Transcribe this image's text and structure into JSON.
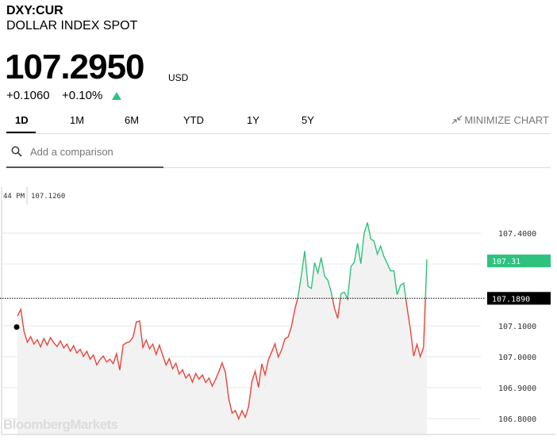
{
  "header": {
    "ticker": "DXY:CUR",
    "name": "DOLLAR INDEX SPOT",
    "price": "107.2950",
    "currency": "USD",
    "change": "+0.1060",
    "change_pct": "+0.10%",
    "direction_icon": "triangle-up-icon",
    "up_color": "#2ec27e"
  },
  "tabs": [
    {
      "label": "1D",
      "active": true
    },
    {
      "label": "1M",
      "active": false
    },
    {
      "label": "6M",
      "active": false
    },
    {
      "label": "YTD",
      "active": false
    },
    {
      "label": "1Y",
      "active": false
    },
    {
      "label": "5Y",
      "active": false
    }
  ],
  "minimize_label": "MINIMIZE CHART",
  "search": {
    "placeholder": "Add a comparison"
  },
  "watermark": "BloombergMarkets",
  "chart_data": {
    "type": "line",
    "x_axis_label": "44 PM",
    "hover_value": "107.1260",
    "y_ticks": [
      106.8,
      106.9,
      107.0,
      107.1,
      107.4
    ],
    "y_tick_labels": [
      "106.8000",
      "106.9000",
      "107.0000",
      "107.1000",
      "107.4000"
    ],
    "ylim": [
      106.76,
      107.48
    ],
    "reference_value": 107.189,
    "reference_label": "107.1890",
    "last_value": 107.31,
    "last_label": "107.31",
    "colors": {
      "above": "#2ec27e",
      "below": "#e8453c",
      "last_badge": "#2ec27e",
      "reference_badge": "#000000"
    },
    "series": [
      {
        "values": [
          107.132,
          107.153,
          107.082,
          107.047,
          107.065,
          107.041,
          107.055,
          107.032,
          107.059,
          107.038,
          107.062,
          107.045,
          107.033,
          107.051,
          107.029,
          107.041,
          107.018,
          107.036,
          107.012,
          107.024,
          107.001,
          107.018,
          106.992,
          107.006,
          106.974,
          106.991,
          107.002,
          106.983,
          106.992,
          106.978,
          107.01,
          106.957,
          107.038,
          107.045,
          107.049,
          107.063,
          107.112,
          107.116,
          107.03,
          107.054,
          107.026,
          107.041,
          107.008,
          107.038,
          107.004,
          106.973,
          106.994,
          106.961,
          106.979,
          106.944,
          106.958,
          106.931,
          106.944,
          106.918,
          106.946,
          106.928,
          106.941,
          106.917,
          106.931,
          106.905,
          106.927,
          106.952,
          106.98,
          106.948,
          106.864,
          106.818,
          106.826,
          106.799,
          106.826,
          106.804,
          106.839,
          106.92,
          106.953,
          106.901,
          106.977,
          106.942,
          106.991,
          107.016,
          107.042,
          106.999,
          107.022,
          107.058,
          107.064,
          107.099,
          107.152,
          107.195,
          107.265,
          107.342,
          107.228,
          107.221,
          107.304,
          107.271,
          107.321,
          107.261,
          107.248,
          107.21,
          107.158,
          107.124,
          107.204,
          107.209,
          107.187,
          107.292,
          107.305,
          107.367,
          107.301,
          107.399,
          107.434,
          107.381,
          107.374,
          107.332,
          107.358,
          107.324,
          107.301,
          107.278,
          107.278,
          107.201,
          107.231,
          107.238,
          107.16,
          107.089,
          107.002,
          107.04,
          107.0,
          107.031,
          107.315
        ]
      }
    ]
  }
}
